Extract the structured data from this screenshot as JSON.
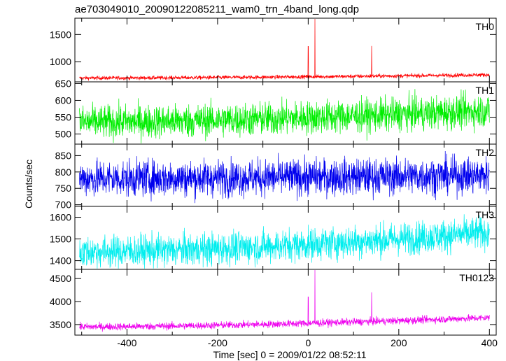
{
  "chart_data": {
    "type": "line",
    "title": "ae703049010_20090122085211_wam0_trn_4band_long.qdp",
    "xlabel": "Time [sec] 0 = 2009/01/22 08:52:11",
    "ylabel": "Counts/sec",
    "xlim": [
      -515,
      415
    ],
    "x_ticks": [
      -400,
      -200,
      0,
      200,
      400
    ],
    "x_range_data": [
      -505,
      400
    ],
    "grid": false,
    "panels": [
      {
        "name": "TH0",
        "color": "#ff0000",
        "ylim": [
          630,
          1800
        ],
        "y_ticks": [
          1000,
          1500
        ],
        "baseline_start": 700,
        "baseline_end": 760,
        "noise": 18,
        "spikes": [
          {
            "x": 0,
            "value": 1280
          },
          {
            "x": 15,
            "value": 1800
          },
          {
            "x": 140,
            "value": 1290
          }
        ]
      },
      {
        "name": "TH1",
        "color": "#00ee00",
        "ylim": [
          470,
          655
        ],
        "y_ticks": [
          500,
          550,
          600,
          650
        ],
        "baseline_start": 535,
        "baseline_end": 570,
        "noise": 25,
        "spikes": []
      },
      {
        "name": "TH2",
        "color": "#0000ee",
        "ylim": [
          695,
          885
        ],
        "y_ticks": [
          700,
          750,
          800,
          850
        ],
        "baseline_start": 780,
        "baseline_end": 790,
        "noise": 28,
        "spikes": []
      },
      {
        "name": "TH3",
        "color": "#00eeee",
        "ylim": [
          1360,
          1650
        ],
        "y_ticks": [
          1400,
          1500,
          1600
        ],
        "baseline_start": 1440,
        "baseline_end": 1530,
        "noise": 38,
        "spikes": []
      },
      {
        "name": "TH0123",
        "color": "#ee00ee",
        "ylim": [
          3270,
          4700
        ],
        "y_ticks": [
          3500,
          4000,
          4500
        ],
        "baseline_start": 3450,
        "baseline_end": 3650,
        "noise": 40,
        "spikes": [
          {
            "x": 0,
            "value": 4100
          },
          {
            "x": 15,
            "value": 4700
          },
          {
            "x": 140,
            "value": 4200
          }
        ]
      }
    ]
  }
}
